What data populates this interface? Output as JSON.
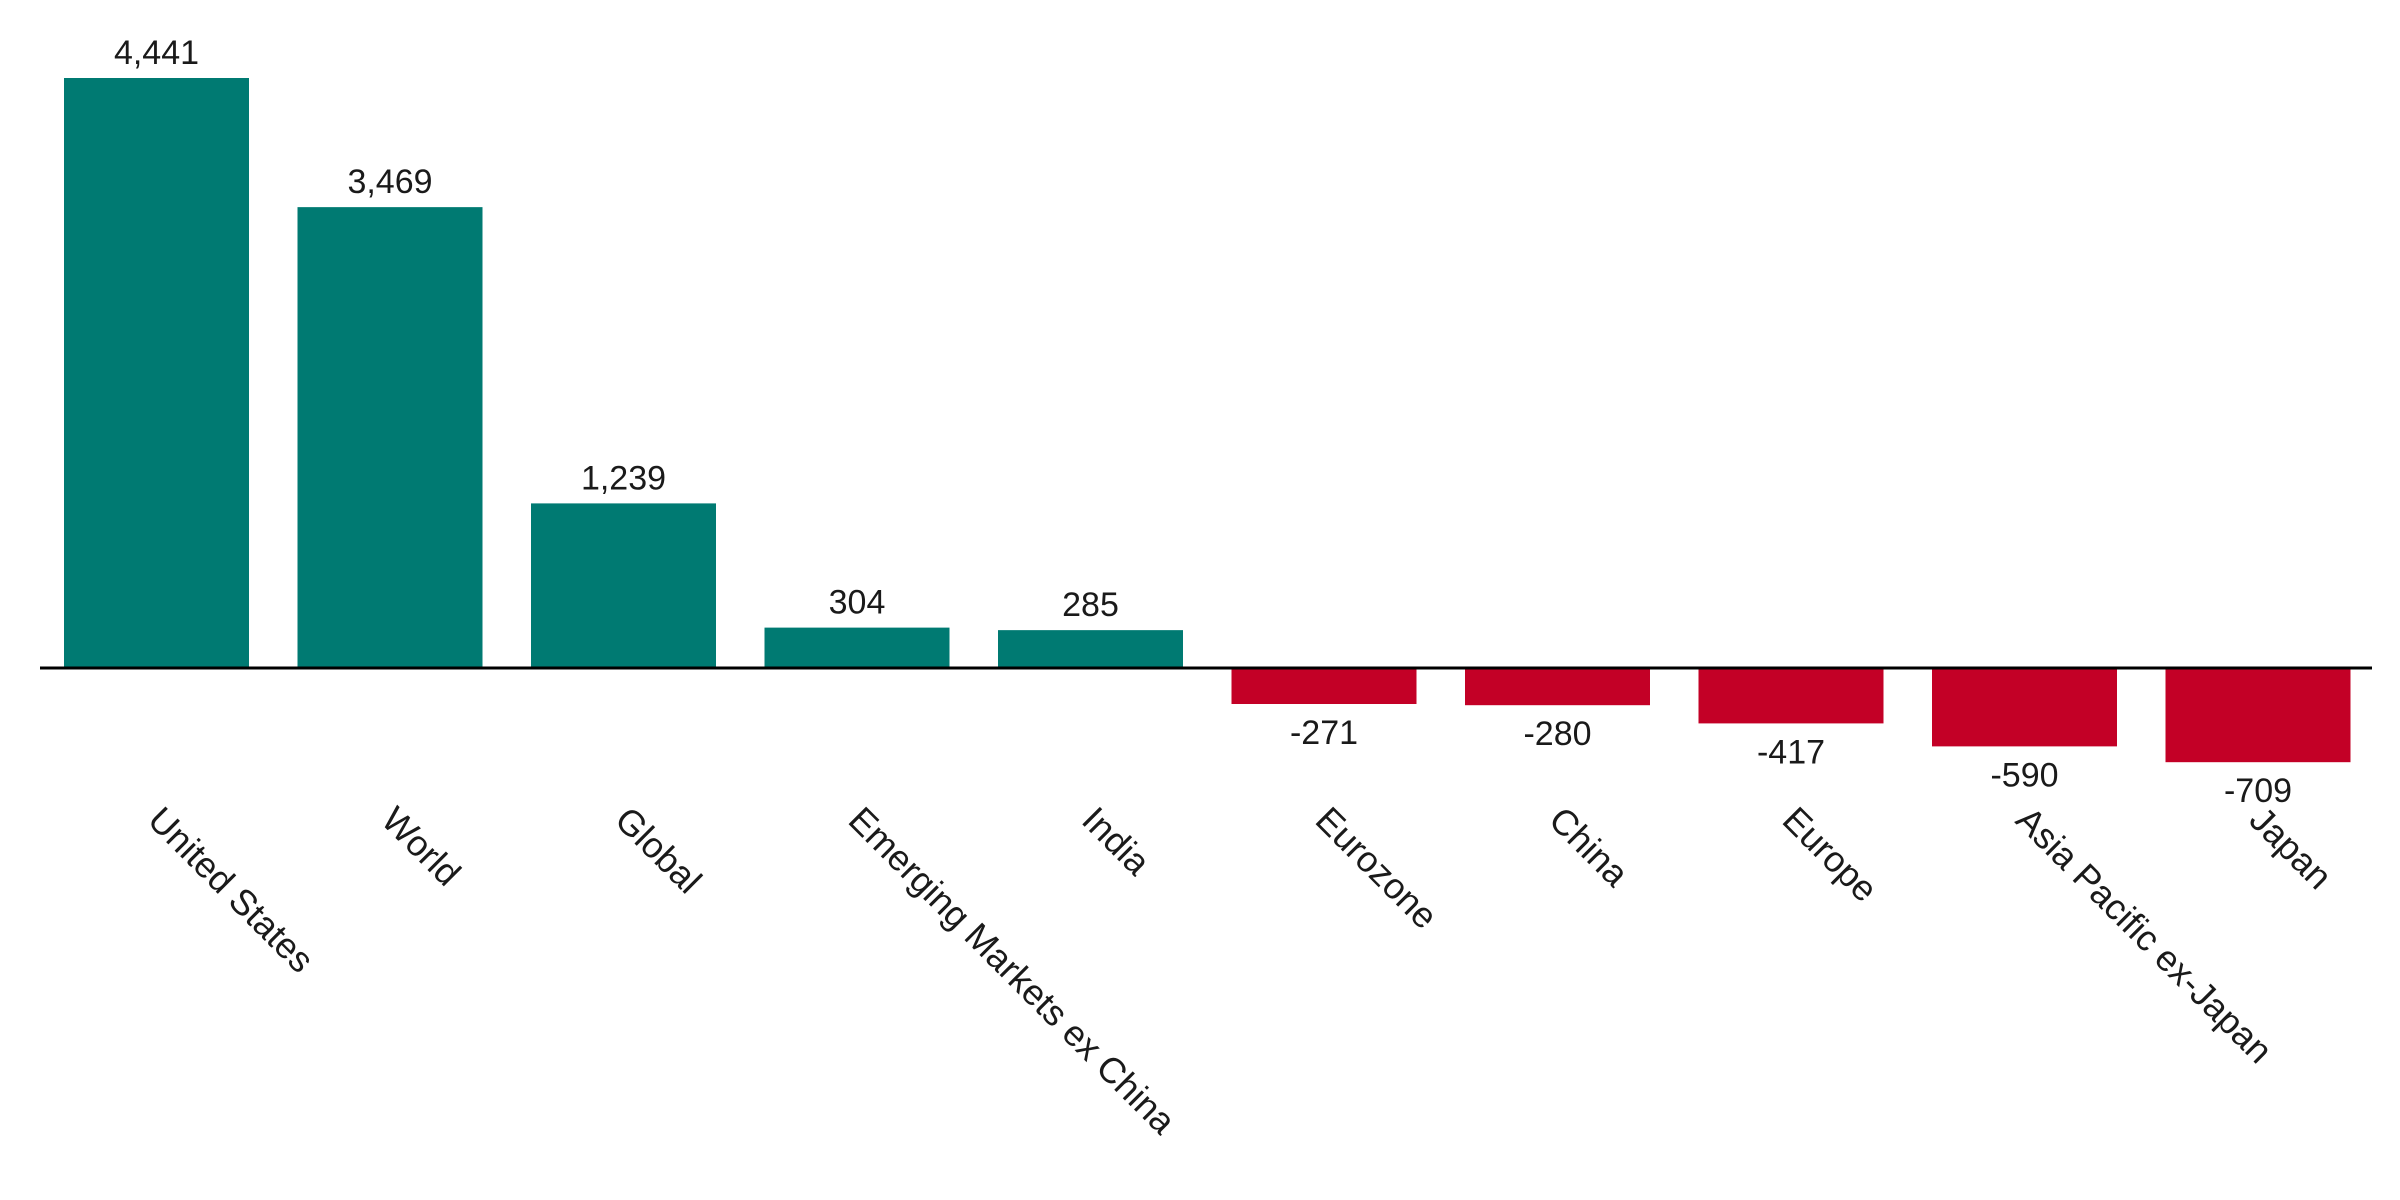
{
  "chart_data": {
    "type": "bar",
    "categories": [
      "United States",
      "World",
      "Global",
      "Emerging Markets ex China",
      "India",
      "Eurozone",
      "China",
      "Europe",
      "Asia Pacific ex-Japan",
      "Japan"
    ],
    "values": [
      4441,
      3469,
      1239,
      304,
      285,
      -271,
      -280,
      -417,
      -590,
      -709
    ],
    "value_labels": [
      "4,441",
      "3,469",
      "1,239",
      "304",
      "285",
      "-271",
      "-280",
      "-417",
      "-590",
      "-709"
    ],
    "ylim": [
      -709,
      4441
    ],
    "grid": false,
    "legend": "none",
    "colors": {
      "positive": "#007A72",
      "negative": "#C30026",
      "axis": "#000000",
      "text": "#1a1a1a"
    }
  }
}
